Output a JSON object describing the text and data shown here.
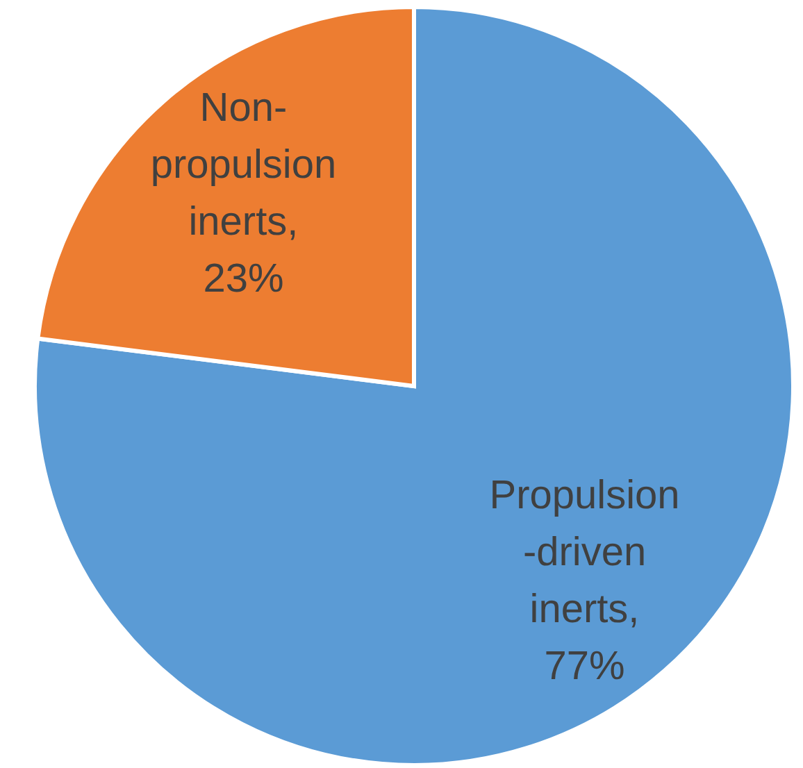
{
  "chart_data": {
    "type": "pie",
    "categories": [
      null,
      null
    ],
    "values": [
      77,
      23
    ],
    "colors": [
      "#5b9bd5",
      "#ed7d31"
    ],
    "value_labels": [
      "Propulsion-driven inerts, 77%",
      "Non-propulsion inerts, 23%"
    ]
  }
}
